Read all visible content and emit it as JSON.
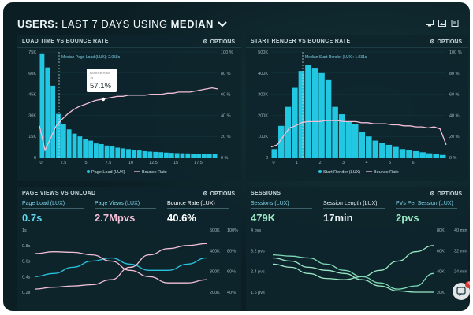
{
  "header": {
    "prefix": "USERS:",
    "middle": "LAST 7 DAYS USING",
    "suffix": "MEDIAN"
  },
  "colors": {
    "cyan": "#22c7e2",
    "pink": "#f2bfd6",
    "green": "#9be8c4",
    "panel": "#0e252c"
  },
  "panels": {
    "load_time": {
      "title": "LOAD TIME VS BOUNCE RATE",
      "options": "OPTIONS",
      "median_label": "Median Page Load (LUX): 2.058s",
      "tooltip_title": "Bounce Rate",
      "tooltip_sub": "7s",
      "tooltip_value": "57.1%",
      "legend": [
        "Page Load (LUX)",
        "Bounce Rate"
      ],
      "chart_data": {
        "type": "bar",
        "x_ticks": [
          "0",
          "2.5",
          "5",
          "7.5",
          "10",
          "12.5",
          "15",
          "17.5"
        ],
        "y_left_ticks": [
          "75K",
          "60K",
          "45K",
          "30K",
          "15K",
          "0"
        ],
        "y_right_ticks": [
          "100 %",
          "80 %",
          "60 %",
          "40 %",
          "20 %",
          "0 %"
        ],
        "ylim": [
          0,
          75000
        ],
        "bar_values": [
          74000,
          64000,
          51000,
          31000,
          24000,
          20000,
          17000,
          15000,
          13000,
          12000,
          10000,
          9500,
          8500,
          8000,
          7000,
          6500,
          6000,
          5500,
          5000,
          4500,
          4200,
          4000,
          3800,
          3500,
          3300,
          3100,
          3000,
          2900,
          2800,
          2700,
          2600,
          2500,
          2400
        ],
        "line_values": [
          30,
          7,
          18,
          30,
          36,
          41,
          45,
          48,
          50,
          52,
          54,
          55,
          56,
          57,
          58,
          58,
          59,
          59,
          59,
          59,
          60,
          60,
          60,
          61,
          61,
          62,
          62,
          62,
          63,
          64,
          65,
          66,
          65
        ]
      }
    },
    "start_render": {
      "title": "START RENDER VS BOUNCE RATE",
      "options": "OPTIONS",
      "median_label": "Median Start Render (LUX): 1.031s",
      "legend": [
        "Start Render (LUX)",
        "Bounce Rate"
      ],
      "chart_data": {
        "type": "bar",
        "x_ticks": [
          "0",
          "1",
          "2",
          "3",
          "4",
          "5",
          "6"
        ],
        "y_left_ticks": [
          "500K",
          "400K",
          "300K",
          "200K",
          "100K",
          "0"
        ],
        "y_right_ticks": [
          "100 %",
          "80 %",
          "60 %",
          "40 %",
          "20 %",
          "0 %"
        ],
        "ylim": [
          0,
          500000
        ],
        "bar_values": [
          40000,
          150000,
          240000,
          330000,
          410000,
          440000,
          425000,
          400000,
          370000,
          240000,
          205000,
          170000,
          160000,
          120000,
          100000,
          80000,
          70000,
          60000,
          50000,
          40000,
          35000,
          30000,
          25000,
          20000,
          15000,
          12000
        ],
        "line_values": [
          10,
          12,
          20,
          28,
          30,
          33,
          34,
          34,
          34,
          35,
          35,
          35,
          34,
          34,
          34,
          33,
          33,
          32,
          32,
          32,
          31,
          31,
          30,
          30,
          29,
          29,
          28,
          29,
          27,
          12
        ]
      }
    },
    "page_views": {
      "title": "PAGE VIEWS VS ONLOAD",
      "options": "OPTIONS",
      "kpis": [
        {
          "label": "Page Load (LUX)",
          "value": "0.7s"
        },
        {
          "label": "Page Views (LUX)",
          "value": "2.7Mpvs"
        },
        {
          "label": "Bounce Rate (LUX)",
          "value": "40.6%"
        }
      ],
      "chart_data": {
        "type": "line",
        "y_left_ticks": [
          "1s",
          "0.8s",
          "0.6s",
          "0.4s",
          "0.2s"
        ],
        "y_mid_ticks": [
          "500K",
          "400K",
          "300K",
          "200K"
        ],
        "y_right_ticks": [
          "100%",
          "80%",
          "60%",
          "40%"
        ],
        "series": [
          {
            "name": "Page Load",
            "values": [
              0.25,
              0.3,
              0.4,
              0.5,
              0.55,
              0.45,
              0.35,
              0.35,
              0.45,
              0.55
            ]
          },
          {
            "name": "Page Views",
            "values": [
              0.62,
              0.65,
              0.64,
              0.6,
              0.5,
              0.35,
              0.25,
              0.15,
              0.15,
              0.2
            ]
          },
          {
            "name": "Bounce Rate",
            "values": [
              0.05,
              0.08,
              0.1,
              0.12,
              0.2,
              0.4,
              0.6,
              0.7,
              0.75,
              0.78
            ]
          }
        ]
      }
    },
    "sessions": {
      "title": "SESSIONS",
      "options": "OPTIONS",
      "kpis": [
        {
          "label": "Sessions (LUX)",
          "value": "479K"
        },
        {
          "label": "Session Length (LUX)",
          "value": "17min"
        },
        {
          "label": "PVs Per Session (LUX)",
          "value": "2pvs"
        }
      ],
      "chart_data": {
        "type": "line",
        "y_left_ticks": [
          "4 pvs",
          "3.2 pvs",
          "2.4 pvs",
          "1.6 pvs"
        ],
        "y_mid_ticks": [
          "80K",
          "60K",
          "40K",
          "20K"
        ],
        "y_right_ticks": [
          "40 min",
          "32 min",
          "24 min",
          "16 min"
        ],
        "series": [
          {
            "name": "Sessions",
            "values": [
              0.45,
              0.4,
              0.3,
              0.22,
              0.2,
              0.25,
              0.35,
              0.5,
              0.65,
              0.75
            ]
          },
          {
            "name": "Session Length",
            "values": [
              0.55,
              0.5,
              0.4,
              0.35,
              0.3,
              0.2,
              0.1,
              0.02,
              0.0,
              0.0
            ]
          },
          {
            "name": "PVs Per Session",
            "values": [
              0.6,
              0.58,
              0.55,
              0.45,
              0.35,
              0.25,
              0.15,
              0.05,
              0.1,
              0.3
            ]
          }
        ]
      }
    }
  },
  "chat": {
    "badge": "4"
  }
}
